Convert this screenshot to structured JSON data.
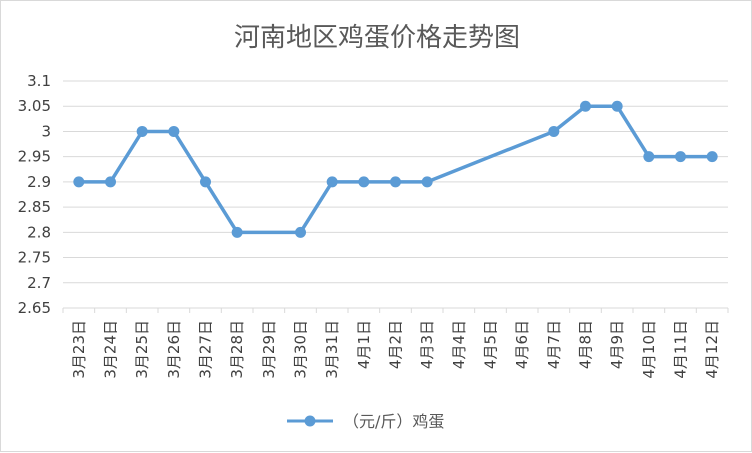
{
  "chart_data": {
    "type": "line",
    "title": "河南地区鸡蛋价格走势图",
    "categories": [
      "3月23日",
      "3月24日",
      "3月25日",
      "3月26日",
      "3月27日",
      "3月28日",
      "3月29日",
      "3月30日",
      "3月31日",
      "4月1日",
      "4月2日",
      "4月3日",
      "4月4日",
      "4月5日",
      "4月6日",
      "4月7日",
      "4月8日",
      "4月9日",
      "4月10日",
      "4月11日",
      "4月12日"
    ],
    "series": [
      {
        "name": "（元/斤）鸡蛋",
        "color": "#5b9bd5",
        "values": [
          2.9,
          2.9,
          3.0,
          3.0,
          2.9,
          2.8,
          null,
          2.8,
          2.9,
          2.9,
          2.9,
          2.9,
          null,
          null,
          null,
          3.0,
          3.05,
          3.05,
          2.95,
          2.95,
          2.95
        ]
      }
    ],
    "ylim": [
      2.65,
      3.1
    ],
    "yticks": [
      "3.1",
      "3.05",
      "3",
      "2.95",
      "2.9",
      "2.85",
      "2.8",
      "2.75",
      "2.7",
      "2.65"
    ],
    "grid": true,
    "legend": "bottom",
    "colors": {
      "grid": "#d9d9d9",
      "text": "#595959"
    }
  }
}
